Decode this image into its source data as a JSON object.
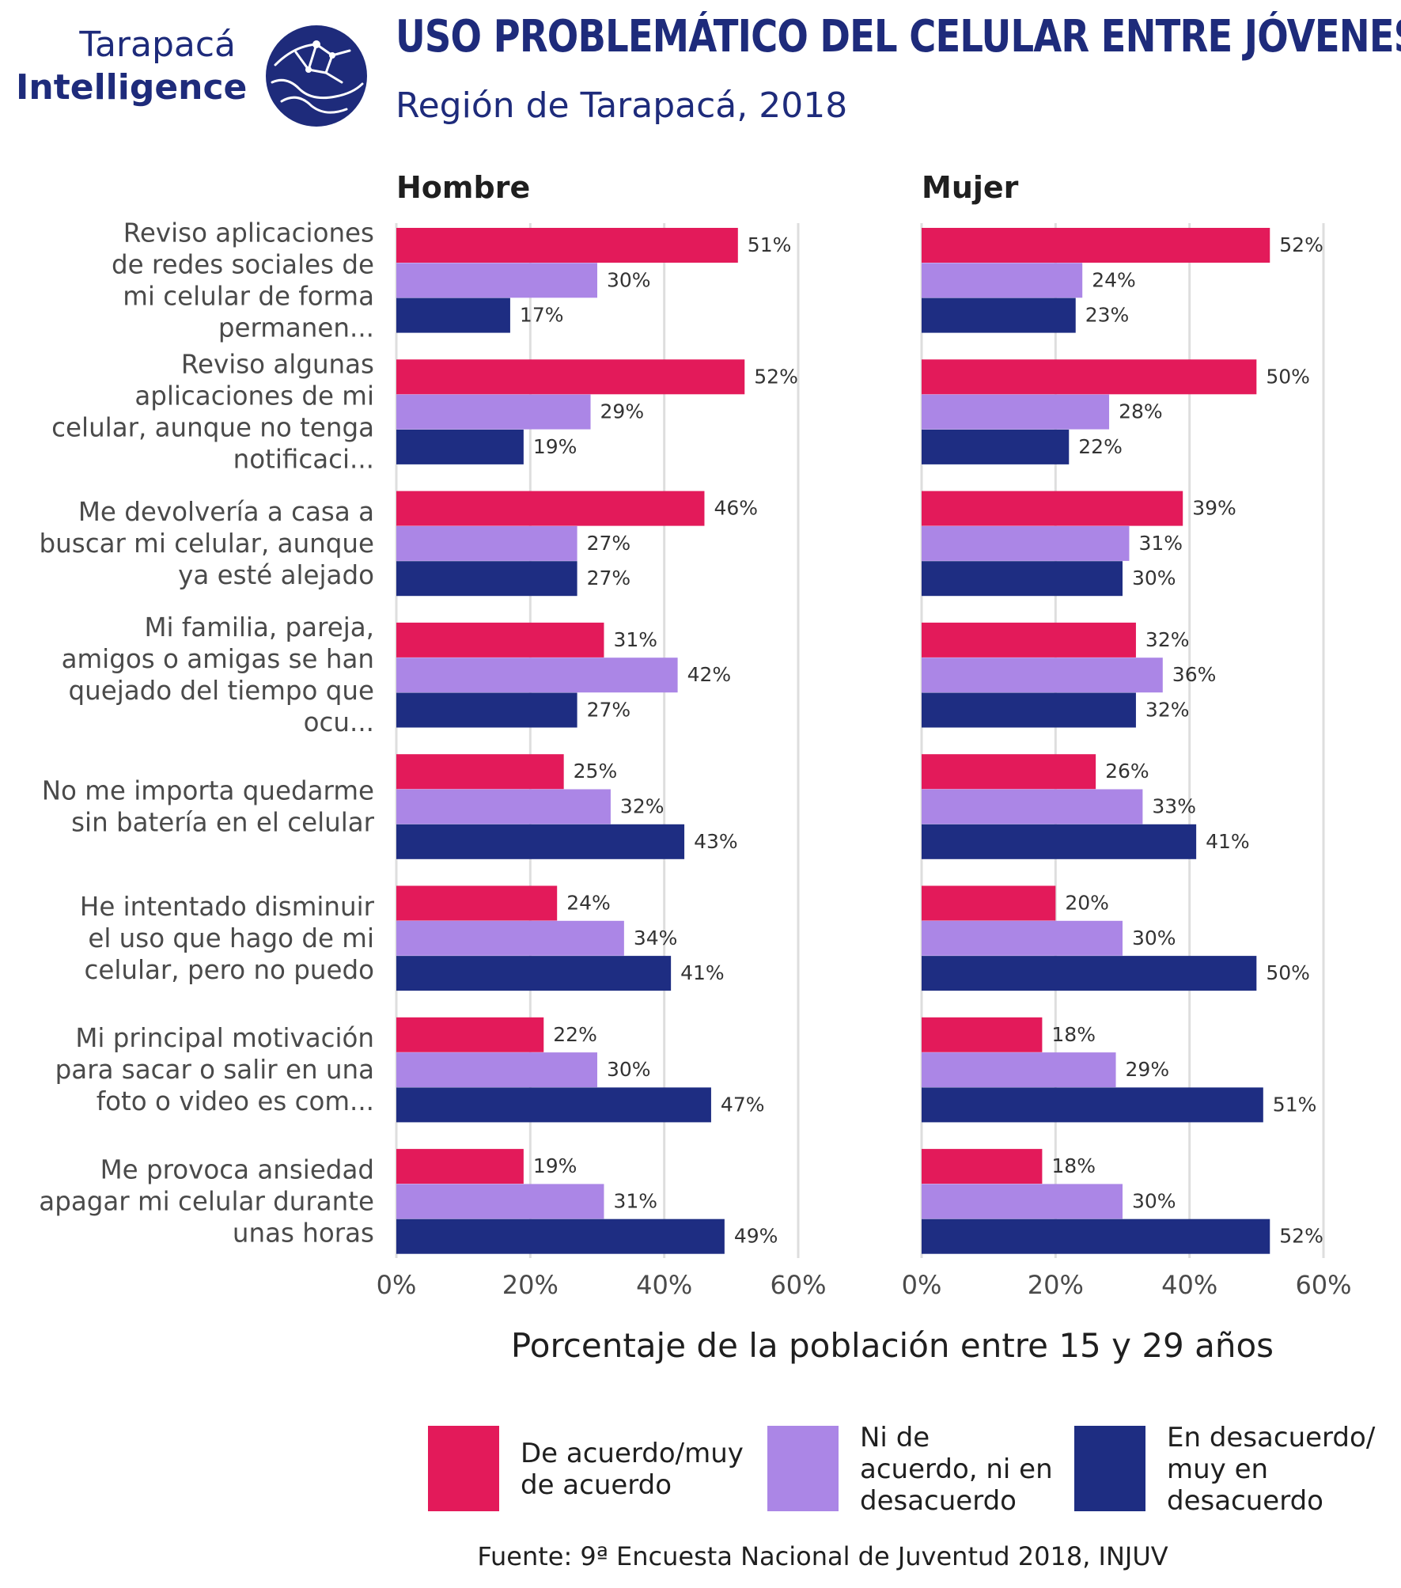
{
  "header": {
    "brand_line1": "Tarapacá",
    "brand_line2": "Intelligence",
    "title": "USO PROBLEMÁTICO DEL CELULAR ENTRE JÓVENES",
    "subtitle": "Región de Tarapacá, 2018"
  },
  "colors": {
    "title": "#1e2b7b",
    "de_acuerdo": "#e31a5a",
    "ni": "#ab86e6",
    "desacuerdo": "#1e2d82",
    "grid": "#dedede"
  },
  "chart_data": {
    "type": "bar",
    "orientation": "horizontal",
    "facets": [
      "Hombre",
      "Mujer"
    ],
    "categories": [
      [
        "Reviso aplicaciones",
        "de redes sociales de",
        "mi celular de forma",
        "permanen..."
      ],
      [
        "Reviso algunas",
        "aplicaciones de mi",
        "celular, aunque no tenga",
        "notificaci..."
      ],
      [
        "Me devolvería a casa a",
        "buscar mi celular, aunque",
        "ya esté alejado"
      ],
      [
        "Mi familia, pareja,",
        "amigos o amigas se han",
        "quejado del tiempo que",
        "ocu..."
      ],
      [
        "No me importa quedarme",
        "sin batería en el celular"
      ],
      [
        "He intentado disminuir",
        "el uso que hago de mi",
        "celular, pero no puedo"
      ],
      [
        "Mi principal motivación",
        "para sacar o salir en una",
        "foto o video es com..."
      ],
      [
        "Me provoca ansiedad",
        "apagar mi celular durante",
        "unas horas"
      ]
    ],
    "series": [
      {
        "name": "De acuerdo/muy de acuerdo",
        "legend_lines": [
          "De acuerdo/muy",
          "de acuerdo"
        ],
        "color": "#e31a5a",
        "Hombre": [
          51,
          52,
          46,
          31,
          25,
          24,
          22,
          19
        ],
        "Mujer": [
          52,
          50,
          39,
          32,
          26,
          20,
          18,
          18
        ]
      },
      {
        "name": "Ni de acuerdo, ni en desacuerdo",
        "legend_lines": [
          "Ni de",
          "acuerdo, ni en",
          "desacuerdo"
        ],
        "color": "#ab86e6",
        "Hombre": [
          30,
          29,
          27,
          42,
          32,
          34,
          30,
          31
        ],
        "Mujer": [
          24,
          28,
          31,
          36,
          33,
          30,
          29,
          30
        ]
      },
      {
        "name": "En desacuerdo/muy en desacuerdo",
        "legend_lines": [
          "En desacuerdo/",
          "muy en",
          "desacuerdo"
        ],
        "color": "#1e2d82",
        "Hombre": [
          17,
          19,
          27,
          27,
          43,
          41,
          47,
          49
        ],
        "Mujer": [
          23,
          22,
          30,
          32,
          41,
          50,
          51,
          52
        ]
      }
    ],
    "x_ticks": [
      "0%",
      "20%",
      "40%",
      "60%"
    ],
    "xlim": [
      0,
      60
    ],
    "xlabel": "Porcentaje de la población entre 15 y 29 años",
    "ylabel": "",
    "grid": true,
    "legend_position": "bottom",
    "source": "Fuente: 9ª Encuesta Nacional de Juventud 2018, INJUV"
  }
}
